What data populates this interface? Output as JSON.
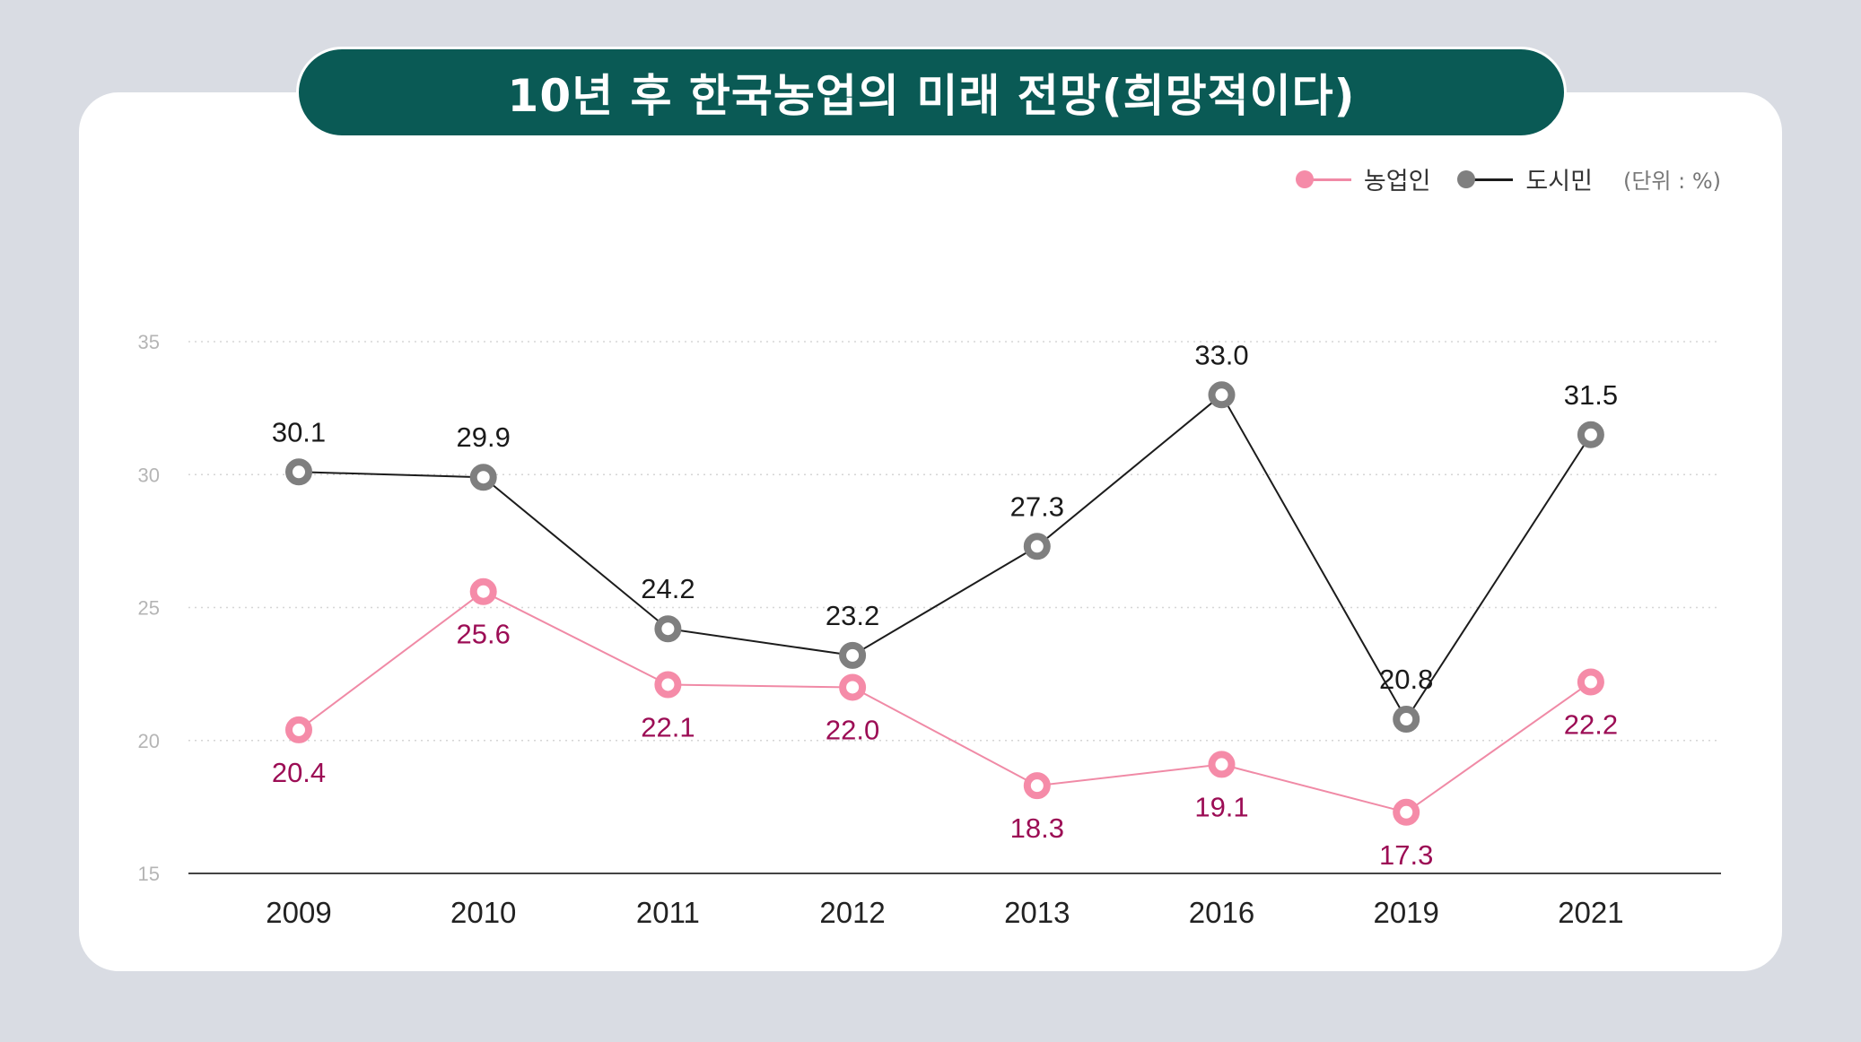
{
  "chart_data": {
    "type": "line",
    "title": "10년 후 한국농업의 미래 전망(희망적이다)",
    "unit_label": "(단위 : %)",
    "categories": [
      "2009",
      "2010",
      "2011",
      "2012",
      "2013",
      "2016",
      "2019",
      "2021"
    ],
    "yticks": [
      "35",
      "30",
      "25",
      "20",
      "15"
    ],
    "ylim": [
      15,
      35
    ],
    "grid": true,
    "legend_position": "top-right",
    "series": [
      {
        "name": "농업인",
        "values": [
          20.4,
          25.6,
          22.1,
          22.0,
          18.3,
          19.1,
          17.3,
          22.2
        ],
        "labels": [
          "20.4",
          "25.6",
          "22.1",
          "22.0",
          "18.3",
          "19.1",
          "17.3",
          "22.2"
        ],
        "line_color": "#f08aa6",
        "marker_color": "#f58ba8",
        "label_color": "#9c0d55"
      },
      {
        "name": "도시민",
        "values": [
          30.1,
          29.9,
          24.2,
          23.2,
          27.3,
          33.0,
          20.8,
          31.5
        ],
        "labels": [
          "30.1",
          "29.9",
          "24.2",
          "23.2",
          "27.3",
          "33.0",
          "20.8",
          "31.5"
        ],
        "line_color": "#1c1c1c",
        "marker_color": "#7f7f7f",
        "label_color": "#1a1a1a"
      }
    ]
  }
}
